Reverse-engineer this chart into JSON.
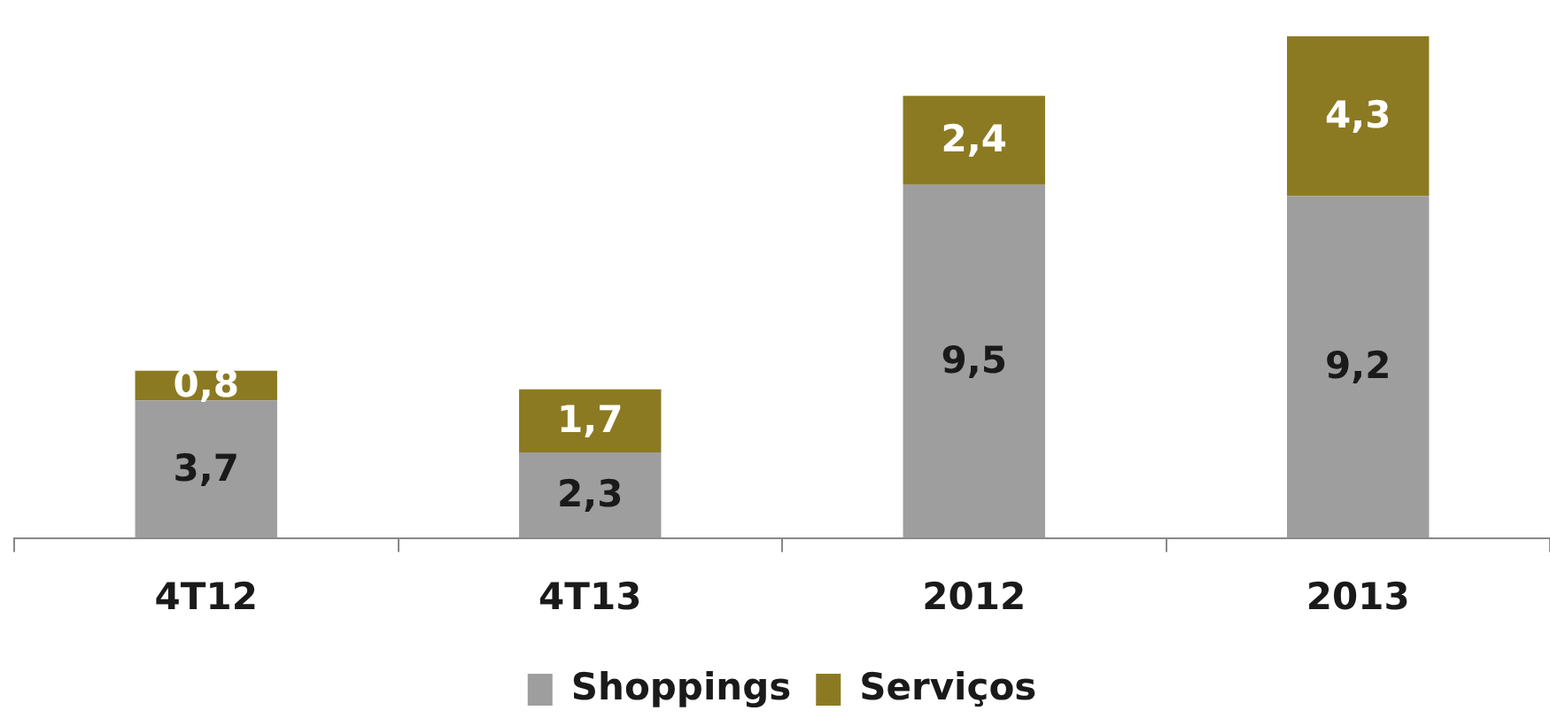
{
  "chart_data": {
    "type": "bar",
    "stacked": true,
    "categories": [
      "4T12",
      "4T13",
      "2012",
      "2013"
    ],
    "series": [
      {
        "name": "Shoppings",
        "color": "#9e9e9e",
        "values": [
          3.7,
          2.3,
          9.5,
          9.2
        ],
        "value_labels": [
          "3,7",
          "2,3",
          "9,5",
          "9,2"
        ]
      },
      {
        "name": "Serviços",
        "color": "#8c7a22",
        "values": [
          0.8,
          1.7,
          2.4,
          4.3
        ],
        "value_labels": [
          "0,8",
          "1,7",
          "2,4",
          "4,3"
        ]
      }
    ],
    "legend": "bottom",
    "grid": false
  }
}
